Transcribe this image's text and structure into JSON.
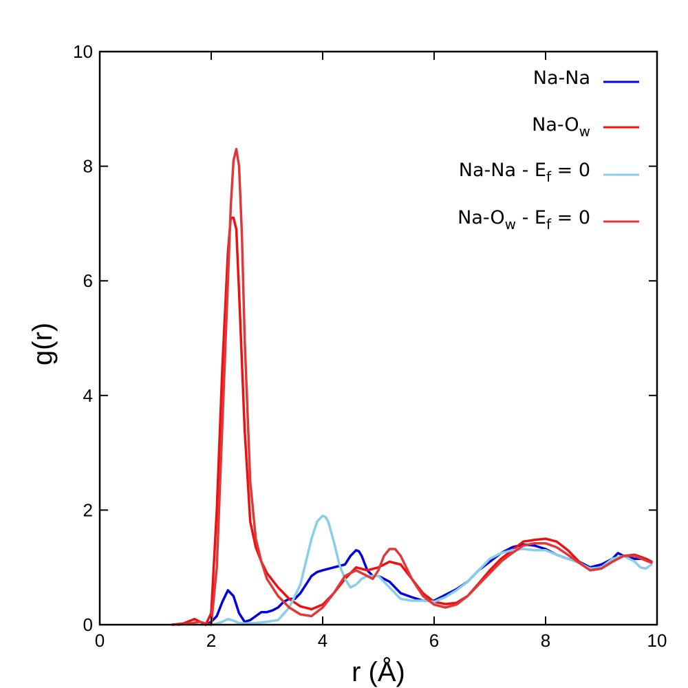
{
  "chart_data": {
    "type": "line",
    "xlabel": "r (Å)",
    "ylabel": "g(r)",
    "xlim": [
      0,
      10
    ],
    "ylim": [
      0,
      10
    ],
    "xticks": [
      0,
      2,
      4,
      6,
      8,
      10
    ],
    "yticks": [
      0,
      2,
      4,
      6,
      8,
      10
    ],
    "legend_position": "top-right",
    "grid": false,
    "series": [
      {
        "key": "nana",
        "name": "Na-Na",
        "color": "#0000e0",
        "x": [
          1.9,
          2.0,
          2.1,
          2.2,
          2.3,
          2.4,
          2.5,
          2.6,
          2.7,
          2.8,
          2.9,
          3.0,
          3.1,
          3.2,
          3.3,
          3.4,
          3.5,
          3.6,
          3.7,
          3.8,
          3.9,
          4.0,
          4.2,
          4.4,
          4.5,
          4.6,
          4.65,
          4.7,
          4.8,
          4.9,
          5.0,
          5.2,
          5.4,
          5.6,
          5.8,
          6.0,
          6.2,
          6.4,
          6.6,
          6.8,
          7.0,
          7.2,
          7.4,
          7.6,
          7.8,
          8.0,
          8.2,
          8.4,
          8.6,
          8.8,
          9.0,
          9.2,
          9.3,
          9.4,
          9.6,
          9.8,
          9.9
        ],
        "y": [
          0.0,
          0.05,
          0.15,
          0.4,
          0.6,
          0.5,
          0.2,
          0.05,
          0.08,
          0.15,
          0.22,
          0.22,
          0.25,
          0.3,
          0.4,
          0.45,
          0.45,
          0.55,
          0.7,
          0.85,
          0.92,
          0.95,
          1.0,
          1.05,
          1.2,
          1.3,
          1.28,
          1.2,
          0.95,
          0.85,
          0.85,
          0.75,
          0.55,
          0.48,
          0.42,
          0.42,
          0.52,
          0.62,
          0.75,
          0.95,
          1.1,
          1.25,
          1.35,
          1.4,
          1.38,
          1.32,
          1.22,
          1.15,
          1.1,
          1.0,
          1.05,
          1.15,
          1.25,
          1.2,
          1.15,
          1.15,
          1.1
        ]
      },
      {
        "key": "naow",
        "name": "Na-O",
        "name_sub": "w",
        "color": "#ee1010",
        "x": [
          1.3,
          1.5,
          1.7,
          1.8,
          1.9,
          2.0,
          2.1,
          2.2,
          2.3,
          2.35,
          2.4,
          2.45,
          2.5,
          2.6,
          2.7,
          2.8,
          2.9,
          3.0,
          3.2,
          3.4,
          3.6,
          3.8,
          4.0,
          4.2,
          4.4,
          4.6,
          4.8,
          5.0,
          5.2,
          5.4,
          5.6,
          5.8,
          6.0,
          6.2,
          6.4,
          6.6,
          6.8,
          7.0,
          7.2,
          7.4,
          7.6,
          7.8,
          8.0,
          8.2,
          8.4,
          8.6,
          8.8,
          9.0,
          9.2,
          9.4,
          9.6,
          9.8,
          9.9
        ],
        "y": [
          0.0,
          0.02,
          0.1,
          0.05,
          0.0,
          0.2,
          2.0,
          4.5,
          6.5,
          7.1,
          7.1,
          6.9,
          5.8,
          3.4,
          1.8,
          1.35,
          1.1,
          0.9,
          0.65,
          0.45,
          0.32,
          0.27,
          0.35,
          0.55,
          0.8,
          1.0,
          0.95,
          1.0,
          1.1,
          1.05,
          0.8,
          0.55,
          0.4,
          0.36,
          0.38,
          0.5,
          0.72,
          0.95,
          1.15,
          1.3,
          1.45,
          1.48,
          1.5,
          1.45,
          1.3,
          1.1,
          0.95,
          0.98,
          1.1,
          1.2,
          1.22,
          1.15,
          1.1
        ]
      },
      {
        "key": "nana0",
        "name": "Na-Na - E",
        "name_sub": "f",
        "name_suffix": " = 0",
        "color": "#87ceeb",
        "x": [
          2.0,
          2.1,
          2.2,
          2.3,
          2.4,
          2.5,
          2.6,
          2.8,
          3.0,
          3.2,
          3.4,
          3.6,
          3.7,
          3.8,
          3.9,
          4.0,
          4.05,
          4.1,
          4.2,
          4.3,
          4.4,
          4.5,
          4.6,
          4.7,
          4.8,
          5.0,
          5.2,
          5.4,
          5.6,
          5.8,
          6.0,
          6.2,
          6.4,
          6.6,
          6.8,
          7.0,
          7.2,
          7.4,
          7.6,
          7.8,
          8.0,
          8.2,
          8.4,
          8.6,
          8.8,
          9.0,
          9.2,
          9.4,
          9.6,
          9.7,
          9.8,
          9.9
        ],
        "y": [
          0.0,
          0.02,
          0.05,
          0.1,
          0.07,
          0.03,
          0.02,
          0.03,
          0.05,
          0.08,
          0.3,
          0.7,
          1.1,
          1.5,
          1.8,
          1.9,
          1.88,
          1.8,
          1.45,
          1.05,
          0.8,
          0.65,
          0.7,
          0.8,
          0.85,
          0.85,
          0.65,
          0.45,
          0.42,
          0.42,
          0.4,
          0.48,
          0.6,
          0.75,
          0.95,
          1.15,
          1.25,
          1.3,
          1.32,
          1.3,
          1.3,
          1.22,
          1.15,
          1.08,
          0.98,
          1.0,
          1.15,
          1.2,
          1.1,
          1.0,
          0.98,
          1.05
        ]
      },
      {
        "key": "naow0",
        "name": "Na-O",
        "name_sub": "w",
        "name_suffix": " - E",
        "name_sub2": "f",
        "name_suffix2": " = 0",
        "color": "#e03838",
        "x": [
          1.4,
          1.6,
          1.8,
          1.9,
          2.0,
          2.1,
          2.2,
          2.3,
          2.35,
          2.4,
          2.45,
          2.5,
          2.55,
          2.6,
          2.7,
          2.8,
          2.9,
          3.0,
          3.2,
          3.4,
          3.6,
          3.8,
          4.0,
          4.2,
          4.4,
          4.6,
          4.8,
          4.9,
          5.0,
          5.1,
          5.2,
          5.3,
          5.4,
          5.6,
          5.8,
          6.0,
          6.2,
          6.4,
          6.6,
          6.8,
          7.0,
          7.2,
          7.4,
          7.6,
          7.8,
          8.0,
          8.2,
          8.4,
          8.6,
          8.8,
          9.0,
          9.2,
          9.4,
          9.6,
          9.8,
          9.9
        ],
        "y": [
          0.0,
          0.02,
          0.05,
          0.02,
          0.0,
          1.0,
          3.5,
          6.0,
          7.3,
          8.1,
          8.3,
          8.0,
          6.8,
          5.0,
          2.5,
          1.5,
          1.1,
          0.8,
          0.5,
          0.3,
          0.18,
          0.15,
          0.3,
          0.55,
          0.85,
          0.95,
          0.85,
          0.8,
          0.95,
          1.2,
          1.32,
          1.32,
          1.2,
          0.8,
          0.5,
          0.35,
          0.3,
          0.35,
          0.5,
          0.7,
          0.9,
          1.1,
          1.25,
          1.38,
          1.42,
          1.42,
          1.35,
          1.22,
          1.08,
          0.95,
          0.98,
          1.1,
          1.2,
          1.2,
          1.12,
          1.08
        ]
      }
    ]
  }
}
